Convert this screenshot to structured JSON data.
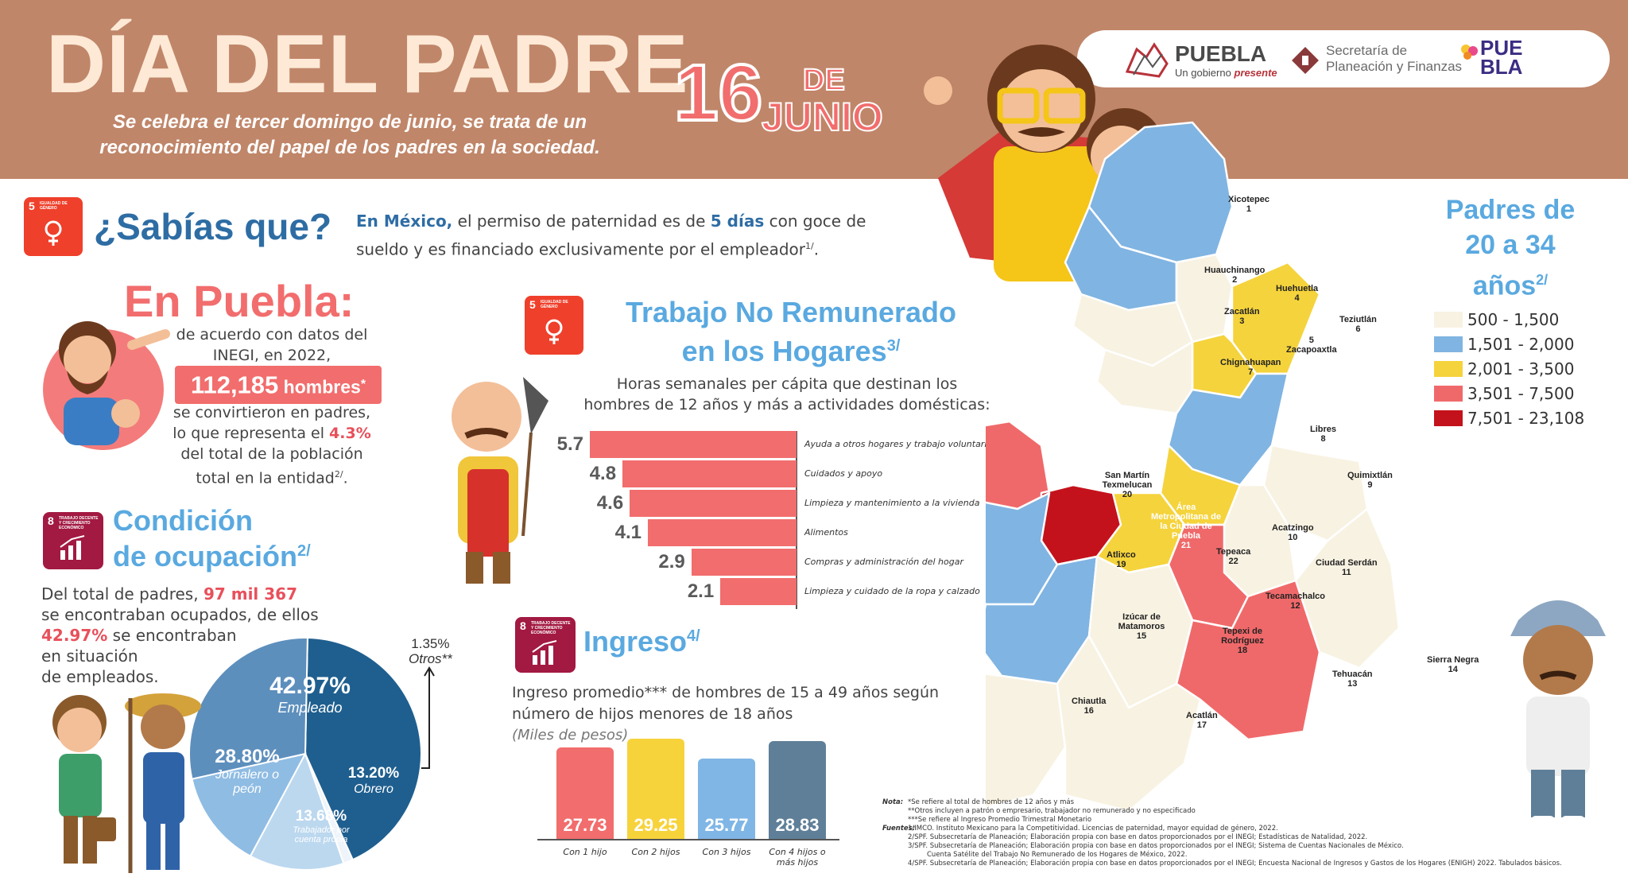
{
  "header": {
    "title": "DÍA DEL PADRE",
    "subtitle": "Se celebra el tercer domingo de junio, se trata de un reconocimiento del papel de los padres en la sociedad.",
    "date_number": "16",
    "date_de": "DE",
    "date_month": "JUNIO"
  },
  "logos": {
    "puebla_word": "PUEBLA",
    "puebla_sub_a": "Un gobierno ",
    "puebla_sub_b": "presente",
    "secretaria_line1": "Secretaría de",
    "secretaria_line2": "Planeación y Finanzas",
    "pue_a": "PUE",
    "pue_b": "BLA"
  },
  "sdg": {
    "five_num": "5",
    "five_label": "IGUALDAD DE GÉNERO",
    "eight_num": "8",
    "eight_label": "TRABAJO DECENTE Y CRECIMIENTO ECONÓMICO"
  },
  "sabias": {
    "title": "¿Sabías que?",
    "lead": "En México,",
    "text_a": " el permiso de paternidad es de ",
    "days": "5 días",
    "text_b": " con goce de sueldo y es financiado exclusivamente por el empleador",
    "ref": "1/",
    "end": "."
  },
  "puebla": {
    "title": "En Puebla:",
    "line1": "de acuerdo con datos del",
    "line2": "INEGI, en 2022,",
    "hombres_num": "112,185",
    "hombres_word": " hombres",
    "hombres_star": "*",
    "line3": "se convirtieron en padres,",
    "line4a": "lo que representa el ",
    "pct": "4.3%",
    "line5": "del total de la población",
    "line6": "total en la entidad",
    "ref": "2/",
    "end": "."
  },
  "condicion": {
    "title_a": "Condición",
    "title_b": "de ocupación",
    "ref": "2/",
    "t1": "Del total de padres, ",
    "total": "97 mil 367",
    "t2": "se encontraban ocupados, de ellos",
    "pct": "42.97%",
    "t3": " se encontraban",
    "t4": "en situación",
    "t5": "de empleados.",
    "otros_pct": "1.35%",
    "otros_lbl": "Otros**"
  },
  "pie": {
    "slices": [
      {
        "pct": "42.97%",
        "label": "Empleado",
        "value": 42.97,
        "color": "#1f5f8f"
      },
      {
        "pct": "1.35%",
        "label": "Otros**",
        "value": 1.35,
        "color": "#eef4fa"
      },
      {
        "pct": "13.20%",
        "label": "Obrero",
        "value": 13.2,
        "color": "#bcd8ef"
      },
      {
        "pct": "13.68%",
        "label": "Trabajador por cuenta propia",
        "value": 13.68,
        "color": "#8fbce3"
      },
      {
        "pct": "28.80%",
        "label": "Jornalero o peón",
        "value": 28.8,
        "color": "#5d8fbd"
      }
    ]
  },
  "trabajo": {
    "title_a": "Trabajo No Remunerado",
    "title_b": "en los Hogares",
    "ref": "3/",
    "sub1": "Horas semanales per cápita que destinan los",
    "sub2": "hombres de 12 años y más a actividades domésticas:"
  },
  "ingreso": {
    "title": "Ingreso",
    "ref": "4/",
    "line1": "Ingreso promedio*** de hombres de 15 a 49 años según",
    "line2": "número de hijos menores de 18 años",
    "unit": "(Miles de pesos)"
  },
  "chart_data": [
    {
      "type": "bar",
      "orientation": "horizontal",
      "categories": [
        "Ayuda a otros hogares y trabajo voluntario",
        "Cuidados y apoyo",
        "Limpieza y mantenimiento a la vivienda",
        "Alimentos",
        "Compras y administración del hogar",
        "Limpieza y cuidado de la ropa y calzado"
      ],
      "values": [
        5.7,
        4.8,
        4.6,
        4.1,
        2.9,
        2.1
      ],
      "value_labels": [
        "5.7",
        "4.8",
        "4.6",
        "4.1",
        "2.9",
        "2.1"
      ],
      "color": "#f26d6d"
    },
    {
      "type": "bar",
      "categories": [
        "Con 1 hijo",
        "Con 2 hijos",
        "Con 3 hijos",
        "Con 4 hijos o más hijos"
      ],
      "values": [
        27.73,
        29.25,
        25.77,
        28.83
      ],
      "value_labels": [
        "27.73",
        "29.25",
        "25.77",
        "28.83"
      ],
      "colors": [
        "#f26d6d",
        "#f7d33b",
        "#7fb6e6",
        "#5f7f98"
      ]
    }
  ],
  "map": {
    "legend_title_a": "Padres de",
    "legend_title_b": "20 a 34",
    "legend_title_c": "años",
    "ref": "2/",
    "legend": [
      {
        "label": "500 - 1,500",
        "color": "#f8f2e2"
      },
      {
        "label": "1,501 - 2,000",
        "color": "#80b4e2"
      },
      {
        "label": "2,001 - 3,500",
        "color": "#f5d33c"
      },
      {
        "label": "3,501 - 7,500",
        "color": "#f0696a"
      },
      {
        "label": "7,501 - 23,108",
        "color": "#c4121c"
      }
    ],
    "regions": [
      {
        "name": "Xicotepec",
        "num": "1"
      },
      {
        "name": "Huauchinango",
        "num": "2"
      },
      {
        "name": "Zacatlán",
        "num": "3"
      },
      {
        "name": "Huehuetla",
        "num": "4"
      },
      {
        "name": "Zacapoaxtla",
        "num": "5"
      },
      {
        "name": "Teziutlán",
        "num": "6"
      },
      {
        "name": "Chignahuapan",
        "num": "7"
      },
      {
        "name": "Libres",
        "num": "8"
      },
      {
        "name": "Quimixtlán",
        "num": "9"
      },
      {
        "name": "Acatzingo",
        "num": "10"
      },
      {
        "name": "Ciudad Serdán",
        "num": "11"
      },
      {
        "name": "Tecamachalco",
        "num": "12"
      },
      {
        "name": "Tehuacán",
        "num": "13"
      },
      {
        "name": "Sierra Negra",
        "num": "14"
      },
      {
        "name": "Izúcar de Matamoros",
        "num": "15"
      },
      {
        "name": "Chiautla",
        "num": "16"
      },
      {
        "name": "Acatlán",
        "num": "17"
      },
      {
        "name": "Tepexi de Rodríguez",
        "num": "18"
      },
      {
        "name": "Atlixco",
        "num": "19"
      },
      {
        "name": "San Martín Texmelucan",
        "num": "20"
      },
      {
        "name": "Área Metropolitana de la Ciudad de Puebla",
        "num": "21"
      },
      {
        "name": "Tepeaca",
        "num": "22"
      }
    ]
  },
  "notes": {
    "nota_key": "Nota:",
    "nota1": "*Se refiere al total de hombres de 12 años y más",
    "nota2": "**Otros incluyen a patrón o empresario, trabajador no remunerado y no especificado",
    "nota3": "***Se refiere al Ingreso Promedio Trimestral Monetario",
    "fuentes_key": "Fuentes:",
    "f1": "1/IMCO. Instituto Mexicano para la Competitividad. Licencias de paternidad, mayor equidad de género, 2022.",
    "f2": "2/SPF. Subsecretaría de Planeación; Elaboración propia con base en datos proporcionados por el INEGI; Estadísticas de Natalidad, 2022.",
    "f3": "3/SPF. Subsecretaría de Planeación; Elaboración propia con base en datos proporcionados por el INEGI; Sistema de Cuentas Nacionales de México.",
    "f3b": "Cuenta Satélite del Trabajo No Remunerado de los Hogares de México, 2022.",
    "f4": "4/SPF. Subsecretaría de Planeación; Elaboración propia con base en datos proporcionados por el INEGI; Encuesta Nacional de Ingresos y Gastos de los Hogares (ENIGH) 2022. Tabulados básicos."
  }
}
